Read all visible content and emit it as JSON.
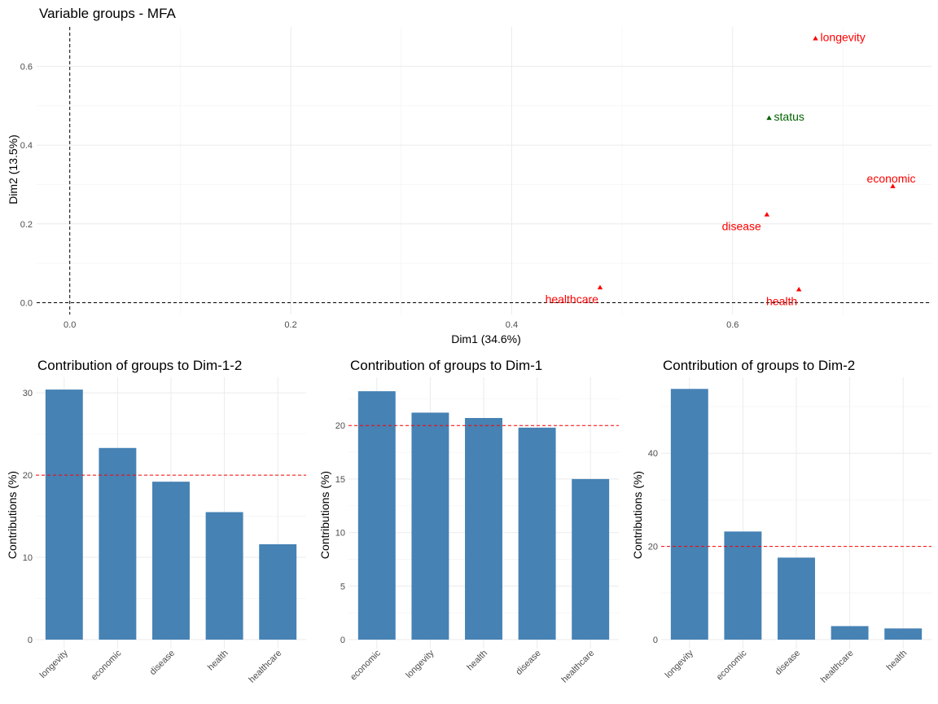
{
  "chart_data": [
    {
      "type": "scatter",
      "title": "Variable groups - MFA",
      "xlabel": "Dim1 (34.6%)",
      "ylabel": "Dim2 (13.5%)",
      "xlim": [
        -0.03,
        0.78
      ],
      "ylim": [
        -0.03,
        0.7
      ],
      "xticks": [
        0.0,
        0.2,
        0.4,
        0.6
      ],
      "xtick_labels": [
        "0.0",
        "0.2",
        "0.4",
        "0.6"
      ],
      "yticks": [
        0.0,
        0.2,
        0.4,
        0.6
      ],
      "ytick_labels": [
        "0.0",
        "0.2",
        "0.4",
        "0.6"
      ],
      "reference_lines": {
        "x": 0,
        "y": 0
      },
      "grid": true,
      "points": [
        {
          "label": "longevity",
          "x": 0.675,
          "y": 0.67,
          "color": "#ff0000",
          "label_pos": "right"
        },
        {
          "label": "status",
          "x": 0.633,
          "y": 0.468,
          "color": "#006400",
          "label_pos": "right"
        },
        {
          "label": "economic",
          "x": 0.745,
          "y": 0.295,
          "color": "#ff0000",
          "label_pos": "above"
        },
        {
          "label": "disease",
          "x": 0.631,
          "y": 0.223,
          "color": "#ff0000",
          "label_pos": "left"
        },
        {
          "label": "healthcare",
          "x": 0.48,
          "y": 0.038,
          "color": "#ff0000",
          "label_pos": "below-left"
        },
        {
          "label": "health",
          "x": 0.66,
          "y": 0.033,
          "color": "#ff0000",
          "label_pos": "below-left"
        }
      ]
    },
    {
      "type": "bar",
      "title": "Contribution of groups to Dim-1-2",
      "ylabel": "Contributions (%)",
      "categories": [
        "longevity",
        "economic",
        "disease",
        "health",
        "healthcare"
      ],
      "values": [
        30.4,
        23.3,
        19.2,
        15.5,
        11.6
      ],
      "ylim": [
        0,
        31.5
      ],
      "yticks": [
        0,
        10,
        20,
        30
      ],
      "ytick_labels": [
        "0",
        "10",
        "20",
        "30"
      ],
      "reference_line": 20,
      "bar_color": "#4682b4",
      "line_color": "#ff0000",
      "grid": true
    },
    {
      "type": "bar",
      "title": "Contribution of groups to Dim-1",
      "ylabel": "Contributions (%)",
      "categories": [
        "economic",
        "longevity",
        "health",
        "disease",
        "healthcare"
      ],
      "values": [
        23.2,
        21.2,
        20.7,
        19.8,
        15.0
      ],
      "ylim": [
        0,
        24.2
      ],
      "yticks": [
        0,
        5,
        10,
        15,
        20
      ],
      "ytick_labels": [
        "0",
        "5",
        "10",
        "15",
        "20"
      ],
      "reference_line": 20,
      "bar_color": "#4682b4",
      "line_color": "#ff0000",
      "grid": true
    },
    {
      "type": "bar",
      "title": "Contribution of groups to Dim-2",
      "ylabel": "Contributions (%)",
      "categories": [
        "longevity",
        "economic",
        "disease",
        "healthcare",
        "health"
      ],
      "values": [
        53.8,
        23.2,
        17.6,
        2.9,
        2.4
      ],
      "ylim": [
        0,
        55.6
      ],
      "yticks": [
        0,
        20,
        40
      ],
      "ytick_labels": [
        "0",
        "20",
        "40"
      ],
      "reference_line": 20,
      "bar_color": "#4682b4",
      "line_color": "#ff0000",
      "grid": true
    }
  ]
}
